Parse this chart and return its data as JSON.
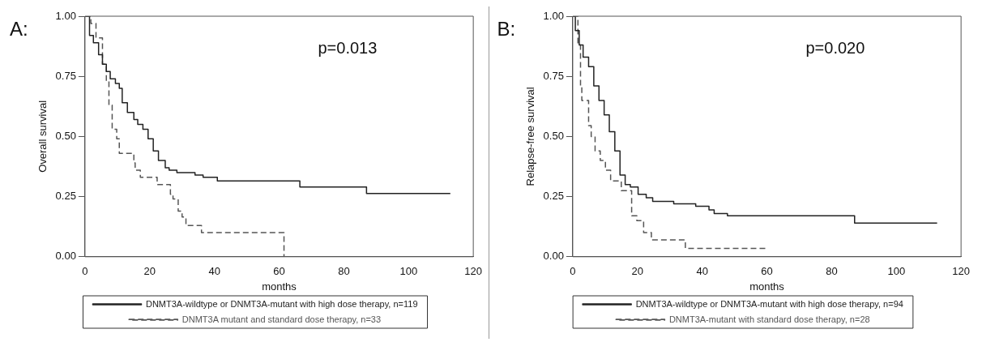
{
  "chart_data": [
    {
      "type": "step",
      "title": "A:",
      "xlabel": "months",
      "ylabel": "Overall survival",
      "annotations": [
        "p=0.013"
      ],
      "xlim": [
        0,
        120
      ],
      "ylim": [
        0,
        1
      ],
      "xticks": [
        0,
        20,
        40,
        60,
        80,
        100,
        120
      ],
      "yticks": [
        {
          "value": 0,
          "label": "0.00"
        },
        {
          "value": 0.25,
          "label": "0.25"
        },
        {
          "value": 0.5,
          "label": "0.50"
        },
        {
          "value": 0.75,
          "label": "0.75"
        },
        {
          "value": 1,
          "label": "1.00"
        }
      ],
      "grid": false,
      "legend": "bottom",
      "series": [
        {
          "name": "DNMT3A-wildtype or DNMT3A-mutant with high dose therapy, n=119",
          "color": "#222222",
          "line_style": "solid",
          "x": [
            0,
            1.4,
            2.6,
            4.2,
            5.4,
            6.6,
            7.8,
            9.4,
            10.6,
            11.5,
            13.1,
            15.1,
            16.3,
            17.9,
            19.5,
            21.1,
            22.7,
            24.8,
            26,
            28.4,
            34,
            36.5,
            40.9,
            66.4,
            87,
            112.9
          ],
          "values": [
            1,
            0.92,
            0.89,
            0.84,
            0.8,
            0.77,
            0.74,
            0.72,
            0.7,
            0.64,
            0.6,
            0.57,
            0.55,
            0.53,
            0.49,
            0.44,
            0.4,
            0.37,
            0.36,
            0.35,
            0.34,
            0.33,
            0.315,
            0.29,
            0.263,
            0.263
          ]
        },
        {
          "name": "DNMT3A mutant and standard dose therapy, n=33",
          "color": "#555555",
          "line_style": "dashed",
          "x": [
            0,
            1.8,
            3.4,
            5.4,
            6.6,
            7.4,
            8.4,
            9.8,
            10.6,
            15.1,
            15.5,
            17.1,
            22.3,
            26.4,
            27.2,
            28.8,
            30,
            31.2,
            36,
            61.5
          ],
          "values": [
            1,
            0.97,
            0.91,
            0.8,
            0.73,
            0.63,
            0.53,
            0.49,
            0.43,
            0.39,
            0.36,
            0.33,
            0.3,
            0.26,
            0.24,
            0.19,
            0.165,
            0.13,
            0.1,
            0
          ]
        }
      ]
    },
    {
      "type": "step",
      "title": "B:",
      "xlabel": "months",
      "ylabel": "Relapse-free survival",
      "annotations": [
        "p=0.020"
      ],
      "xlim": [
        0,
        120
      ],
      "ylim": [
        0,
        1
      ],
      "xticks": [
        0,
        20,
        40,
        60,
        80,
        100,
        120
      ],
      "yticks": [
        {
          "value": 0,
          "label": "0.00"
        },
        {
          "value": 0.25,
          "label": "0.25"
        },
        {
          "value": 0.5,
          "label": "0.50"
        },
        {
          "value": 0.75,
          "label": "0.75"
        },
        {
          "value": 1,
          "label": "1.00"
        }
      ],
      "grid": false,
      "legend": "bottom",
      "series": [
        {
          "name": "DNMT3A-wildtype or DNMT3A-mutant with high dose therapy, n=94",
          "color": "#222222",
          "line_style": "solid",
          "x": [
            0,
            0.8,
            2,
            3.2,
            4.9,
            6.5,
            8.1,
            9.7,
            11.3,
            13,
            14.6,
            16.2,
            17.8,
            20.2,
            22.7,
            24.7,
            31.2,
            38,
            42.1,
            43.7,
            47.8,
            87.1,
            112.6
          ],
          "values": [
            1,
            0.94,
            0.88,
            0.83,
            0.79,
            0.71,
            0.65,
            0.59,
            0.52,
            0.44,
            0.34,
            0.3,
            0.29,
            0.26,
            0.245,
            0.23,
            0.22,
            0.21,
            0.195,
            0.18,
            0.17,
            0.14,
            0.14
          ]
        },
        {
          "name": "DNMT3A-mutant with standard dose therapy, n=28",
          "color": "#555555",
          "line_style": "dashed",
          "x": [
            0,
            1.6,
            2.4,
            2.8,
            4.9,
            5.7,
            6.9,
            8.5,
            10.1,
            11.7,
            15,
            18.2,
            19.8,
            21.9,
            24.3,
            34.8,
            57.6,
            60
          ],
          "values": [
            1,
            0.88,
            0.71,
            0.65,
            0.545,
            0.5,
            0.44,
            0.4,
            0.36,
            0.315,
            0.275,
            0.17,
            0.15,
            0.1,
            0.07,
            0.035,
            0.035,
            0.035
          ]
        }
      ]
    }
  ]
}
